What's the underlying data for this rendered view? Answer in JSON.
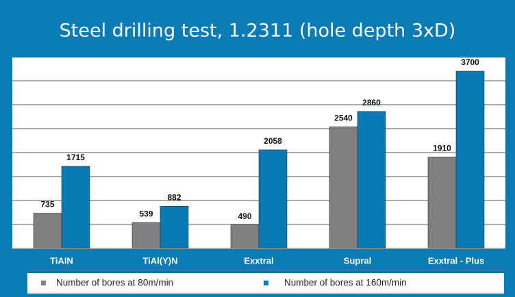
{
  "chart_data": {
    "type": "bar",
    "title": "Steel drilling test, 1.2311 (hole depth 3xD)",
    "categories": [
      "TiAIN",
      "TiAl(Y)N",
      "Exxtral",
      "Supral",
      "Exxtral - Plus"
    ],
    "series": [
      {
        "name": "Number of bores at 80m/min",
        "color": "#808080",
        "values": [
          735,
          539,
          490,
          2540,
          1910
        ]
      },
      {
        "name": "Number of bores at 160m/min",
        "color": "#0a7ab4",
        "values": [
          1715,
          882,
          2058,
          2860,
          3700
        ]
      }
    ],
    "ylim": [
      0,
      4000
    ],
    "yticks": [
      0,
      500,
      1000,
      1500,
      2000,
      2500,
      3000,
      3500
    ],
    "grid": true,
    "legend": "bottom"
  }
}
